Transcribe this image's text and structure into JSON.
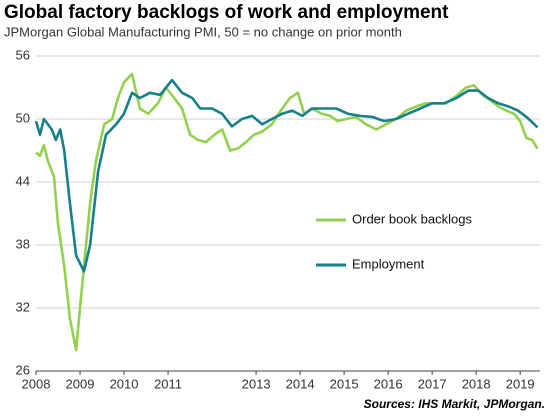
{
  "chart_data": {
    "type": "line",
    "title": "Global factory backlogs of work and employment",
    "subtitle": "JPMorgan Global Manufacturing PMI, 50 = no change on prior month",
    "source": "Sources: IHS Markit, JPMorgan.",
    "xlim": [
      2008,
      2019.45
    ],
    "xticks": [
      2008,
      2009,
      2010,
      2011,
      2013,
      2014,
      2015,
      2016,
      2017,
      2018,
      2019
    ],
    "ylim": [
      26,
      56
    ],
    "yticks": [
      26,
      32,
      38,
      44,
      50,
      56
    ],
    "grid": true,
    "series": [
      {
        "name": "Order book backlogs",
        "color": "#92d050",
        "x": [
          2008.0,
          2008.09,
          2008.18,
          2008.27,
          2008.41,
          2008.5,
          2008.64,
          2008.77,
          2008.91,
          2009.0,
          2009.09,
          2009.23,
          2009.36,
          2009.55,
          2009.73,
          2009.86,
          2010.0,
          2010.18,
          2010.36,
          2010.55,
          2010.77,
          2010.95,
          2011.14,
          2011.32,
          2011.5,
          2011.68,
          2011.86,
          2012.05,
          2012.23,
          2012.41,
          2012.59,
          2012.77,
          2012.95,
          2013.14,
          2013.36,
          2013.59,
          2013.77,
          2013.95,
          2014.09,
          2014.27,
          2014.5,
          2014.68,
          2014.86,
          2015.05,
          2015.27,
          2015.5,
          2015.73,
          2015.95,
          2016.18,
          2016.41,
          2016.64,
          2016.86,
          2017.09,
          2017.32,
          2017.55,
          2017.77,
          2017.95,
          2018.14,
          2018.32,
          2018.5,
          2018.68,
          2018.86,
          2019.0,
          2019.14,
          2019.27,
          2019.39
        ],
        "values": [
          46.8,
          46.5,
          47.5,
          46,
          44.5,
          40,
          36,
          31,
          28,
          32,
          36,
          42,
          46,
          49.5,
          50,
          52,
          53.5,
          54.3,
          51,
          50.5,
          51.5,
          53,
          52,
          51,
          48.5,
          48,
          47.8,
          48.5,
          49,
          47,
          47.2,
          47.8,
          48.5,
          48.8,
          49.5,
          51,
          52,
          52.5,
          50.5,
          51,
          50.5,
          50.3,
          49.8,
          50,
          50.2,
          49.5,
          49,
          49.5,
          50,
          50.8,
          51.2,
          51.5,
          51.5,
          51.5,
          52.2,
          53,
          53.2,
          52.3,
          51.8,
          51.2,
          50.8,
          50.5,
          49.8,
          48.2,
          48,
          47.2
        ]
      },
      {
        "name": "Employment",
        "color": "#17808a",
        "x": [
          2008.0,
          2008.09,
          2008.18,
          2008.36,
          2008.45,
          2008.55,
          2008.64,
          2008.77,
          2008.91,
          2009.09,
          2009.23,
          2009.41,
          2009.59,
          2009.82,
          2010.0,
          2010.18,
          2010.36,
          2010.59,
          2010.82,
          2011.09,
          2011.32,
          2011.55,
          2011.73,
          2012.0,
          2012.23,
          2012.45,
          2012.68,
          2012.91,
          2013.14,
          2013.36,
          2013.59,
          2013.82,
          2014.05,
          2014.27,
          2014.55,
          2014.82,
          2015.09,
          2015.36,
          2015.64,
          2015.91,
          2016.18,
          2016.45,
          2016.73,
          2017.0,
          2017.27,
          2017.55,
          2017.82,
          2018.05,
          2018.27,
          2018.5,
          2018.73,
          2018.95,
          2019.14,
          2019.27,
          2019.39
        ],
        "values": [
          49.8,
          48.5,
          50,
          49,
          48,
          49,
          47,
          42,
          37,
          35.5,
          38,
          45,
          48.5,
          49.5,
          50.5,
          52.5,
          52,
          52.5,
          52.3,
          53.7,
          52.5,
          52,
          51,
          51,
          50.5,
          49.3,
          50,
          50.3,
          49.5,
          50,
          50.5,
          50.8,
          50.3,
          51,
          51,
          51,
          50.5,
          50.3,
          50.2,
          49.8,
          50,
          50.5,
          51,
          51.5,
          51.5,
          52,
          52.7,
          52.7,
          52,
          51.5,
          51.2,
          50.8,
          50.2,
          49.7,
          49.2
        ]
      }
    ]
  }
}
